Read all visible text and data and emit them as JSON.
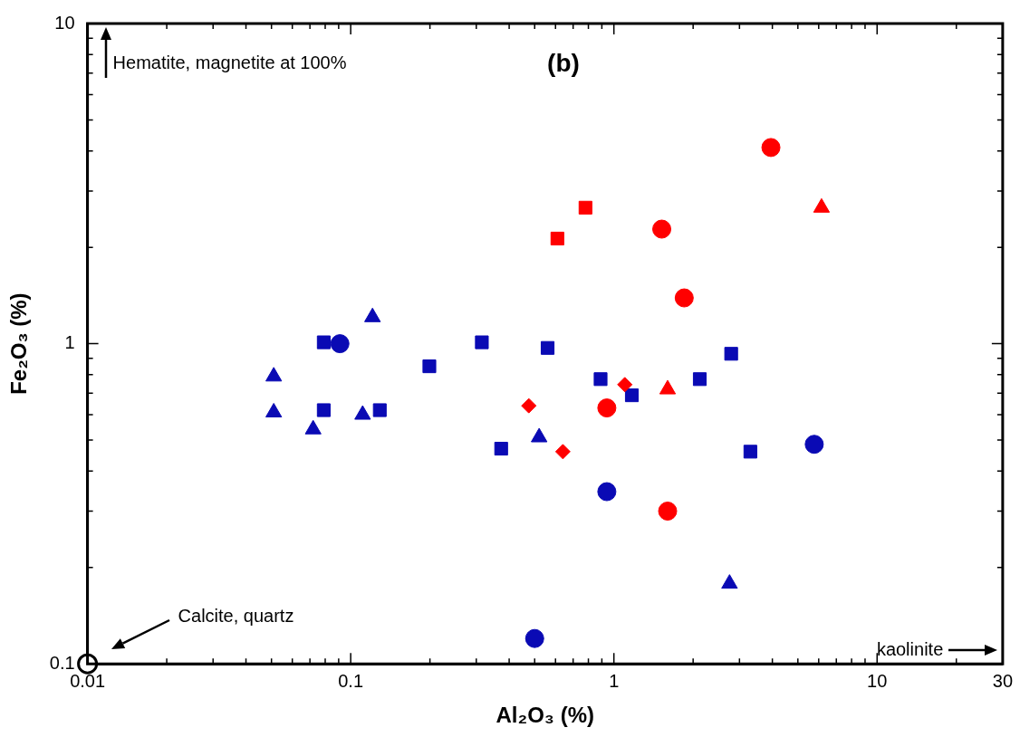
{
  "chart_data": {
    "type": "scatter",
    "title": "(b)",
    "xlabel": "Al₂O₃ (%)",
    "ylabel": "Fe₂O₃ (%)",
    "log": "xy",
    "grid": false,
    "legend": false,
    "xlim": [
      0.01,
      30
    ],
    "ylim": [
      0.1,
      10
    ],
    "xticks": [
      0.01,
      {
        "value": 0.02,
        "label": null
      },
      {
        "value": 0.03,
        "label": null
      },
      {
        "value": 0.04,
        "label": null
      },
      {
        "value": 0.05,
        "label": null
      },
      {
        "value": 0.06,
        "label": null
      },
      {
        "value": 0.07,
        "label": null
      },
      {
        "value": 0.08,
        "label": null
      },
      {
        "value": 0.09,
        "label": null
      },
      0.1,
      {
        "value": 0.2,
        "label": null
      },
      {
        "value": 0.3,
        "label": null
      },
      {
        "value": 0.4,
        "label": null
      },
      {
        "value": 0.5,
        "label": null
      },
      {
        "value": 0.6,
        "label": null
      },
      {
        "value": 0.7,
        "label": null
      },
      {
        "value": 0.8,
        "label": null
      },
      {
        "value": 0.9,
        "label": null
      },
      1,
      {
        "value": 2,
        "label": null
      },
      {
        "value": 3,
        "label": null
      },
      {
        "value": 4,
        "label": null
      },
      {
        "value": 5,
        "label": null
      },
      {
        "value": 6,
        "label": null
      },
      {
        "value": 7,
        "label": null
      },
      {
        "value": 8,
        "label": null
      },
      {
        "value": 9,
        "label": null
      },
      10,
      {
        "value": 20,
        "label": null
      },
      30
    ],
    "yticks": [
      0.1,
      {
        "value": 0.2,
        "label": null
      },
      {
        "value": 0.3,
        "label": null
      },
      {
        "value": 0.4,
        "label": null
      },
      {
        "value": 0.5,
        "label": null
      },
      {
        "value": 0.6,
        "label": null
      },
      {
        "value": 0.7,
        "label": null
      },
      {
        "value": 0.8,
        "label": null
      },
      {
        "value": 0.9,
        "label": null
      },
      1,
      {
        "value": 2,
        "label": null
      },
      {
        "value": 3,
        "label": null
      },
      {
        "value": 4,
        "label": null
      },
      {
        "value": 5,
        "label": null
      },
      {
        "value": 6,
        "label": null
      },
      {
        "value": 7,
        "label": null
      },
      {
        "value": 8,
        "label": null
      },
      {
        "value": 9,
        "label": null
      },
      10
    ],
    "annotations": [
      "Hematite, magnetite at 100%",
      "Calcite, quartz",
      "kaolinite"
    ],
    "series": [
      {
        "color": "#ff0000",
        "marker": "circle",
        "x": [
          3.95,
          1.52,
          1.85,
          0.94,
          1.6
        ],
        "values": [
          4.1,
          2.28,
          1.39,
          0.63,
          0.3
        ]
      },
      {
        "color": "#ff0000",
        "marker": "square",
        "x": [
          0.78,
          0.61
        ],
        "values": [
          2.66,
          2.13
        ]
      },
      {
        "color": "#ff0000",
        "marker": "triangle",
        "x": [
          6.15,
          1.6
        ],
        "values": [
          2.66,
          0.72
        ]
      },
      {
        "color": "#ff0000",
        "marker": "diamond",
        "x": [
          0.475,
          0.64,
          1.1
        ],
        "values": [
          0.64,
          0.46,
          0.745
        ]
      },
      {
        "color": "#0a0ab4",
        "marker": "circle",
        "x": [
          0.091,
          0.94,
          5.77,
          0.5
        ],
        "values": [
          1.0,
          0.345,
          0.485,
          0.12
        ]
      },
      {
        "color": "#0a0ab4",
        "marker": "square",
        "x": [
          0.079,
          0.079,
          0.129,
          0.199,
          0.315,
          0.373,
          0.56,
          0.89,
          1.17,
          2.12,
          2.79,
          3.3
        ],
        "values": [
          1.01,
          0.62,
          0.62,
          0.85,
          1.01,
          0.47,
          0.97,
          0.775,
          0.69,
          0.775,
          0.93,
          0.46
        ]
      },
      {
        "color": "#0a0ab4",
        "marker": "triangle",
        "x": [
          0.051,
          0.051,
          0.072,
          0.111,
          0.121,
          0.52,
          2.75
        ],
        "values": [
          0.79,
          0.61,
          0.54,
          0.6,
          1.21,
          0.51,
          0.178
        ]
      },
      {
        "color": "#000000",
        "marker": "circle",
        "x": [
          0.01
        ],
        "values": [
          0.1
        ]
      }
    ]
  }
}
